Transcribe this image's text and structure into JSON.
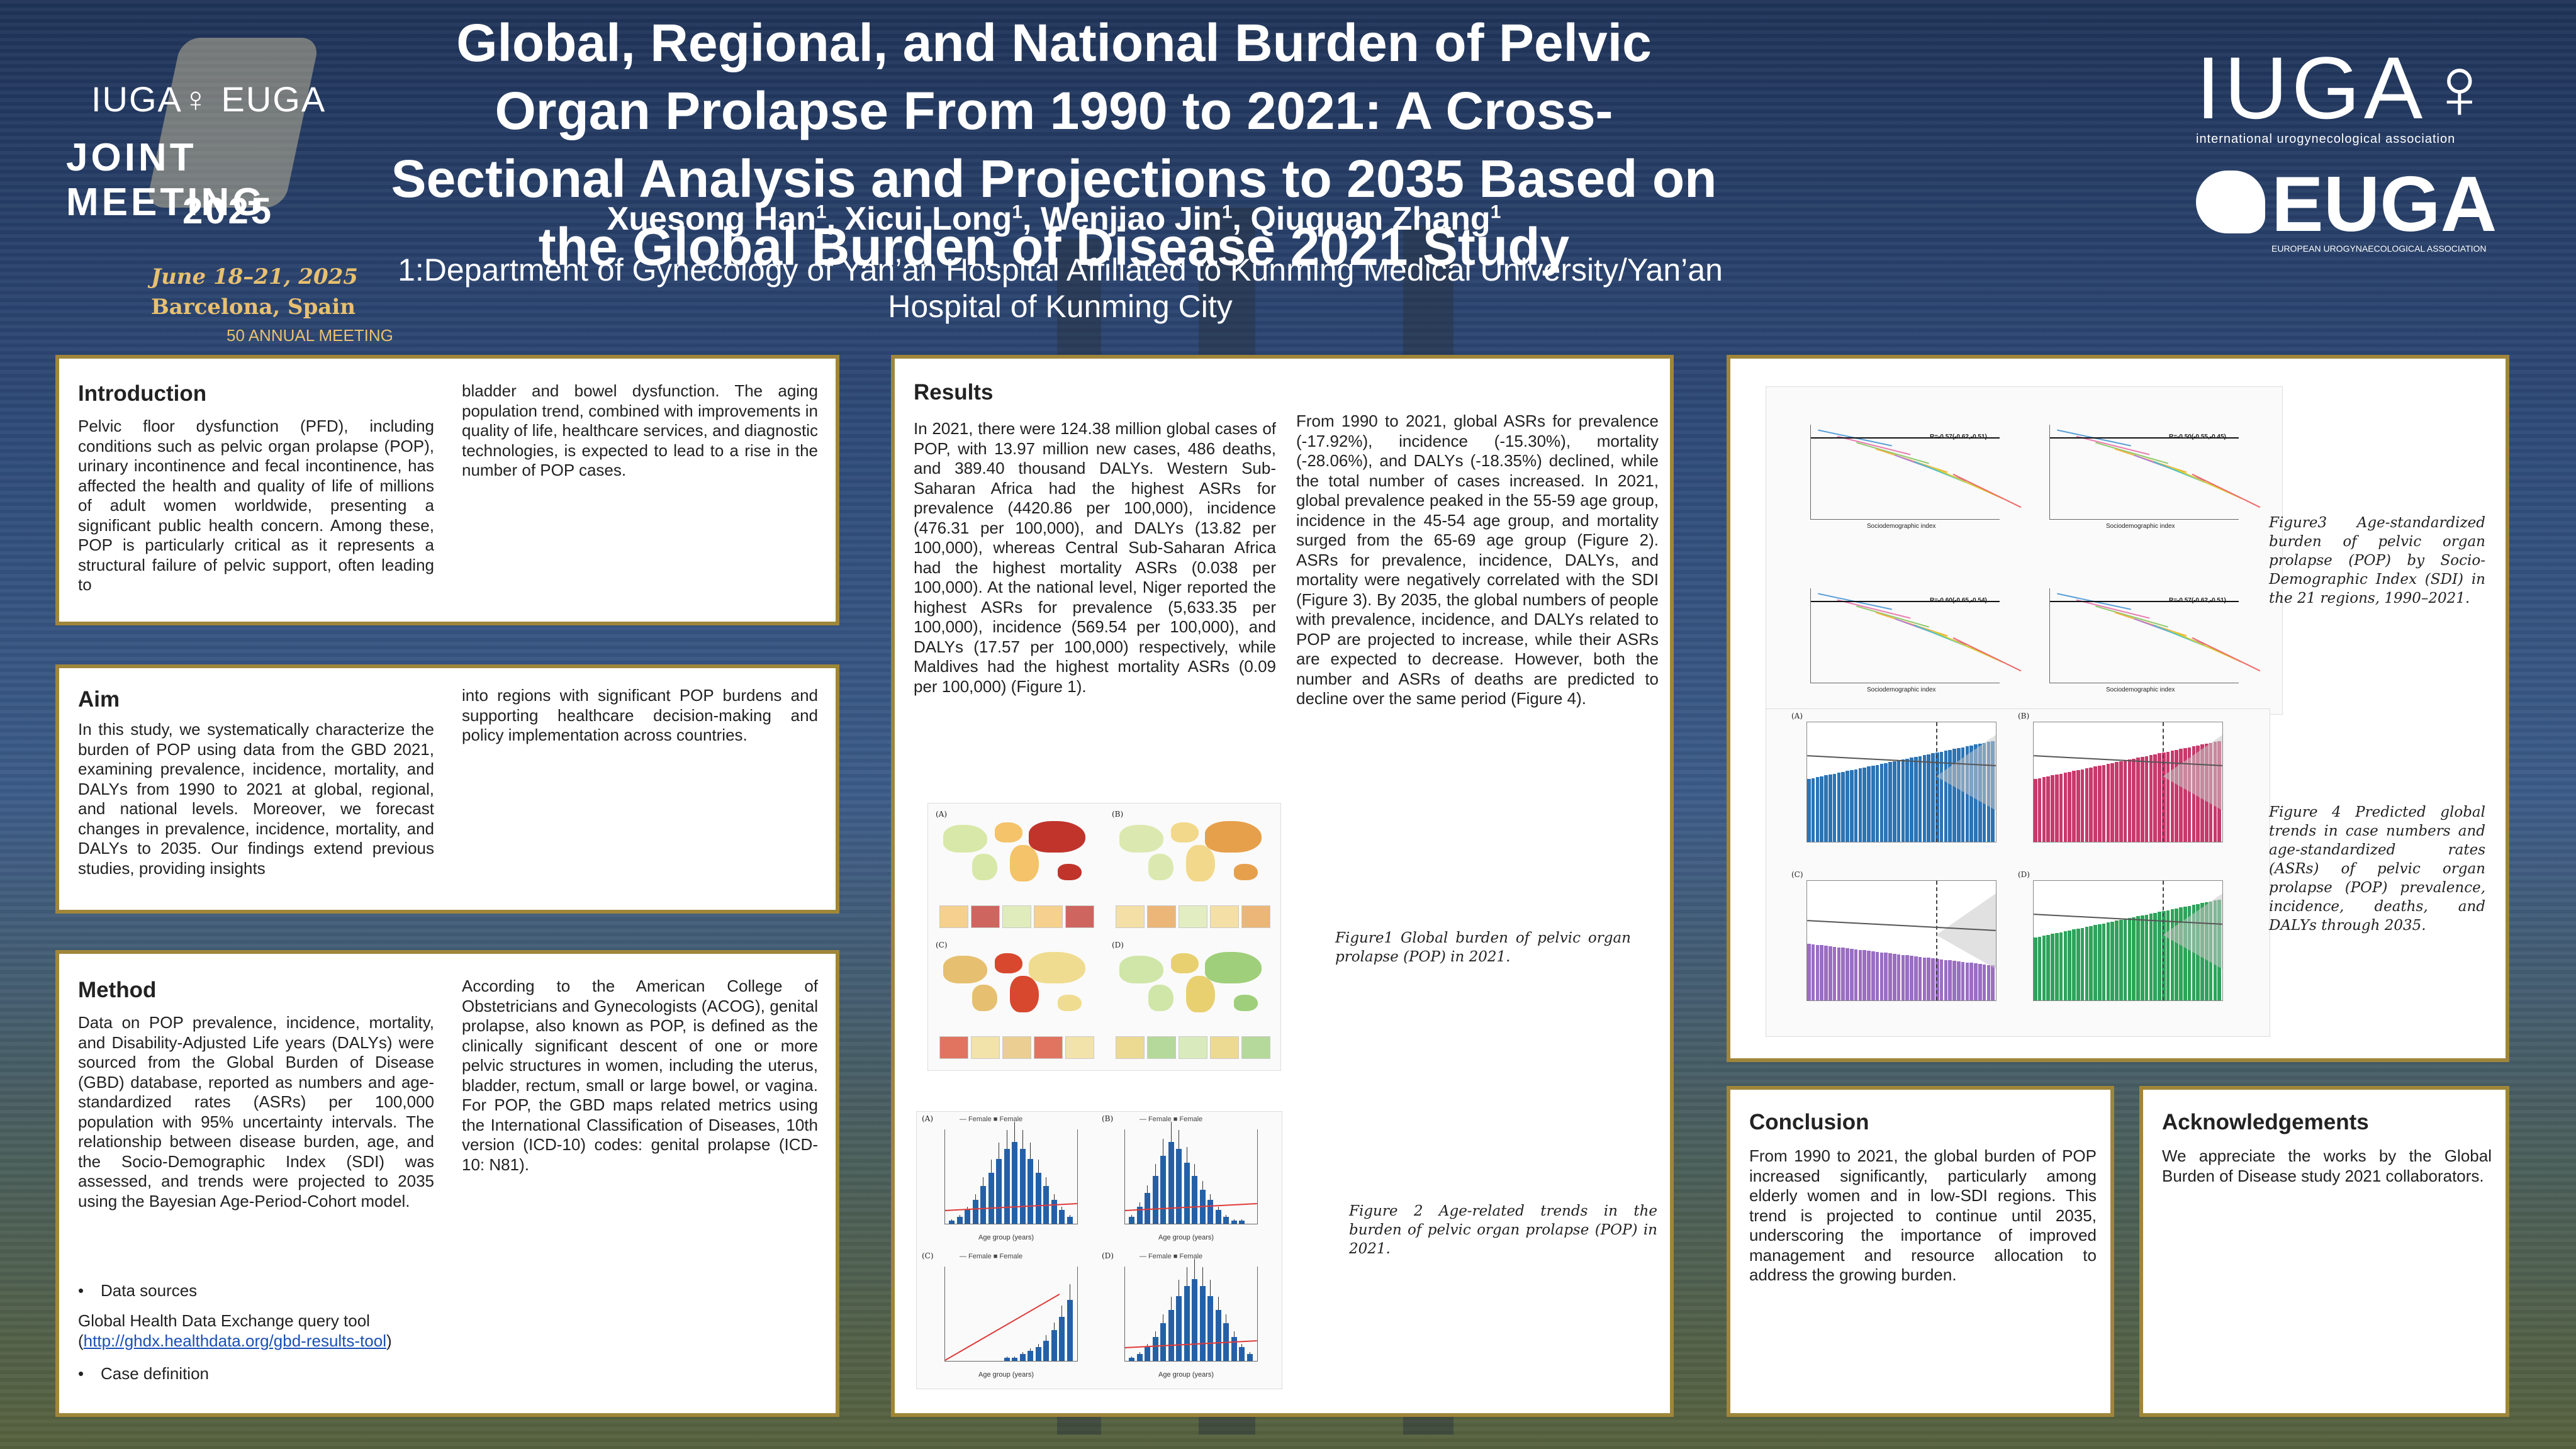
{
  "header": {
    "title": "Global, Regional, and National Burden of Pelvic Organ Prolapse From 1990 to 2021: A Cross-Sectional Analysis and Projections to 2035 Based on the Global Burden of Disease 2021 Study",
    "authors": [
      {
        "name": "Xuesong Han",
        "sup": "1"
      },
      {
        "name": "Xicui Long",
        "sup": "1"
      },
      {
        "name": "Wenjiao Jin",
        "sup": "1"
      },
      {
        "name": "Qiuquan Zhang",
        "sup": "1"
      }
    ],
    "affiliation": "1:Department of Gynecology of Yan’an Hospital Affiliated to Kunming Medical University/Yan’an Hospital of Kunming City"
  },
  "logos": {
    "left": {
      "orgs": "IUGA♀ EUGA",
      "line1": "JOINT MEETING",
      "line2": "2025",
      "date": "June 18–21, 2025",
      "place": "Barcelona, Spain",
      "anniv": "50 ANNUAL MEETING"
    },
    "right": {
      "iuga": "IUGA♀",
      "iuga_sub": "international urogynecological association",
      "euga": "EUGA",
      "euga_sub": "EUROPEAN UROGYNAECOLOGICAL ASSOCIATION"
    }
  },
  "introduction": {
    "heading": "Introduction",
    "col1": "Pelvic floor dysfunction (PFD), including conditions such as pelvic organ prolapse (POP), urinary incontinence and fecal incontinence, has affected the health and quality of life of millions of adult women worldwide, presenting a significant public health concern. Among these, POP is particularly critical as it represents a structural failure of pelvic support, often leading to",
    "col2": "bladder and bowel dysfunction. The aging population trend, combined with improvements in quality of life, healthcare services, and diagnostic technologies, is expected to lead to a rise in the number of POP cases."
  },
  "aim": {
    "heading": "Aim",
    "col1": "In this study, we systematically characterize the burden of POP using data from the GBD 2021, examining prevalence, incidence, mortality, and DALYs from 1990 to 2021 at global, regional, and national levels. Moreover, we forecast changes in prevalence, incidence, mortality, and DALYs to 2035. Our findings extend previous studies, providing insights",
    "col2": "into regions with significant POP burdens and supporting healthcare decision-making and policy implementation across countries."
  },
  "method": {
    "heading": "Method",
    "col1": "Data on POP prevalence, incidence, mortality, and Disability-Adjusted Life years (DALYs) were sourced from the Global Burden of Disease (GBD) database, reported as numbers and age-standardized rates (ASRs) per 100,000 population with 95% uncertainty intervals. The relationship between disease burden, age, and the Socio-Demographic Index (SDI) was assessed, and trends were projected to 2035 using the Bayesian Age-Period-Cohort model.",
    "bullet1": "Data sources",
    "source_text": "Global Health Data Exchange query tool",
    "source_link": "http://ghdx.healthdata.org/gbd-results-tool",
    "bullet2": "Case definition",
    "col2": "According to the American College of Obstetricians and Gynecologists (ACOG), genital prolapse, also known as POP, is defined as the clinically significant descent of one or more pelvic structures in women, including the uterus, bladder, rectum, small or large bowel, or vagina. For POP, the GBD maps related metrics using the International Classification of Diseases, 10th version (ICD-10) codes: genital prolapse (ICD-10: N81)."
  },
  "results": {
    "heading": "Results",
    "col1": "In 2021, there were 124.38 million global cases of POP, with 13.97 million new cases, 486 deaths, and 389.40 thousand DALYs. Western Sub-Saharan Africa had the highest ASRs for prevalence (4420.86 per 100,000), incidence (476.31 per 100,000), and DALYs (13.82 per 100,000), whereas Central Sub-Saharan Africa had the highest mortality ASRs (0.038 per 100,000). At the national level, Niger reported the highest ASRs for prevalence (5,633.35 per 100,000), incidence (569.54 per 100,000), and DALYs (17.57 per 100,000) respectively, while Maldives had the highest mortality ASRs (0.09 per 100,000) (Figure 1).",
    "col2": "From 1990 to 2021, global ASRs for prevalence (-17.92%), incidence (-15.30%), mortality (-28.06%), and DALYs (-18.35%) declined, while the total number of cases increased. In 2021, global prevalence peaked in the 55-59 age group, incidence in the 45-54 age group, and mortality surged from the 65-69 age group (Figure 2). ASRs for prevalence, incidence, DALYs, and mortality were negatively correlated with the SDI (Figure 3). By 2035, the global numbers of people with prevalence, incidence, and DALYs related to POP are projected to increase, while their ASRs are expected to decrease. However, both the number and ASRs of deaths are predicted to decline over the same period (Figure 4).",
    "fig1_caption": "Figure1 Global burden of pelvic organ prolapse (POP) in 2021.",
    "fig2_caption": "Figure 2 Age-related trends in the burden of pelvic organ prolapse (POP) in 2021.",
    "fig2_legend_a": "Female",
    "fig2_legend_b": "Female",
    "fig2_xlabel": "Age group (years)"
  },
  "figures_right": {
    "fig3_caption": "Figure3 Age-standardized burden of pelvic organ prolapse (POP) by Socio-Demographic Index (SDI) in the 21 regions, 1990–2021.",
    "fig4_caption": "Figure 4 Predicted global trends in case numbers and age-standardized rates (ASRs) of pelvic organ prolapse (POP) prevalence, incidence, deaths, and DALYs through 2035.",
    "fig3_xlabel": "Sociodemographic index",
    "fig3_stats": [
      "R=-0.57(-0.62,-0.51)",
      "R=-0.50(-0.55,-0.45)",
      "R=-0.60(-0.65,-0.54)",
      "R=-0.57(-0.62,-0.51)"
    ],
    "panel_labels": [
      "(A)",
      "(B)",
      "(C)",
      "(D)"
    ],
    "colors": {
      "blue": "#2b74b6",
      "pink": "#c73a6b",
      "purple": "#9a6ec2",
      "green": "#2ea35a"
    }
  },
  "conclusion": {
    "heading": "Conclusion",
    "text": "From 1990 to 2021, the global burden of POP increased significantly, particularly among elderly women and in low-SDI regions. This trend is projected to continue until 2035, underscoring the importance of improved management and resource allocation to address the growing burden."
  },
  "acknowledgements": {
    "heading": "Acknowledgements",
    "text": "We appreciate the works by the Global Burden of Disease study 2021 collaborators."
  }
}
